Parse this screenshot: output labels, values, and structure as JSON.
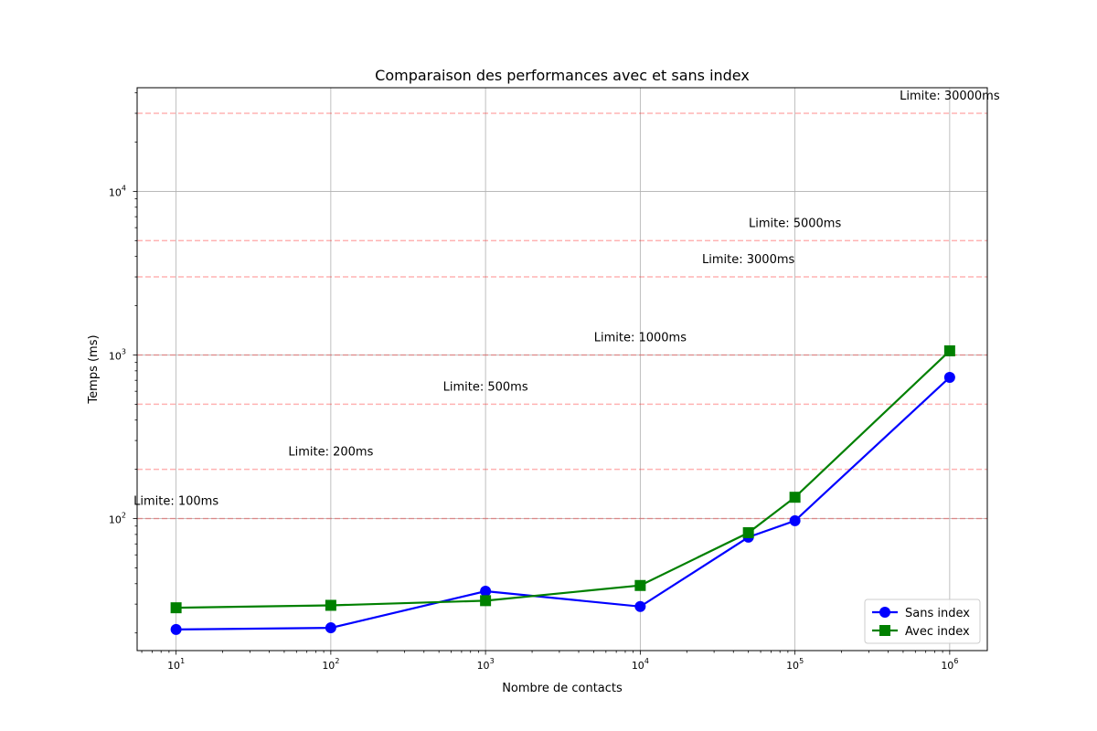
{
  "chart_data": {
    "type": "line",
    "title": "Comparaison des performances avec et sans index",
    "xlabel": "Nombre de contacts",
    "ylabel": "Temps (ms)",
    "x_scale": "log",
    "y_scale": "log",
    "xlim": [
      5.6,
      1750000
    ],
    "ylim": [
      15.6,
      43000
    ],
    "grid": true,
    "x_ticks": [
      {
        "value": 10,
        "base": "10",
        "exp": "1"
      },
      {
        "value": 100,
        "base": "10",
        "exp": "2"
      },
      {
        "value": 1000,
        "base": "10",
        "exp": "3"
      },
      {
        "value": 10000,
        "base": "10",
        "exp": "4"
      },
      {
        "value": 100000,
        "base": "10",
        "exp": "5"
      },
      {
        "value": 1000000,
        "base": "10",
        "exp": "6"
      }
    ],
    "y_ticks": [
      {
        "value": 100,
        "base": "10",
        "exp": "2"
      },
      {
        "value": 1000,
        "base": "10",
        "exp": "3"
      },
      {
        "value": 10000,
        "base": "10",
        "exp": "4"
      }
    ],
    "x": [
      10,
      100,
      1000,
      10000,
      50000,
      100000,
      1000000
    ],
    "series": [
      {
        "name": "Sans index",
        "color": "#0000ff",
        "marker": "circle",
        "values": [
          21,
          21.5,
          36,
          29,
          77,
          97,
          730
        ]
      },
      {
        "name": "Avec index",
        "color": "#008000",
        "marker": "square",
        "values": [
          28.5,
          29.5,
          31.5,
          39,
          82,
          135,
          1060
        ]
      }
    ],
    "thresholds": [
      {
        "value": 100,
        "label": "Limite: 100ms",
        "label_x": 10
      },
      {
        "value": 200,
        "label": "Limite: 200ms",
        "label_x": 100
      },
      {
        "value": 500,
        "label": "Limite: 500ms",
        "label_x": 1000
      },
      {
        "value": 1000,
        "label": "Limite: 1000ms",
        "label_x": 10000
      },
      {
        "value": 3000,
        "label": "Limite: 3000ms",
        "label_x": 50000
      },
      {
        "value": 5000,
        "label": "Limite: 5000ms",
        "label_x": 100000
      },
      {
        "value": 30000,
        "label": "Limite: 30000ms",
        "label_x": 1000000
      }
    ],
    "threshold_color": "#ff0000",
    "legend_position": "lower-right"
  }
}
